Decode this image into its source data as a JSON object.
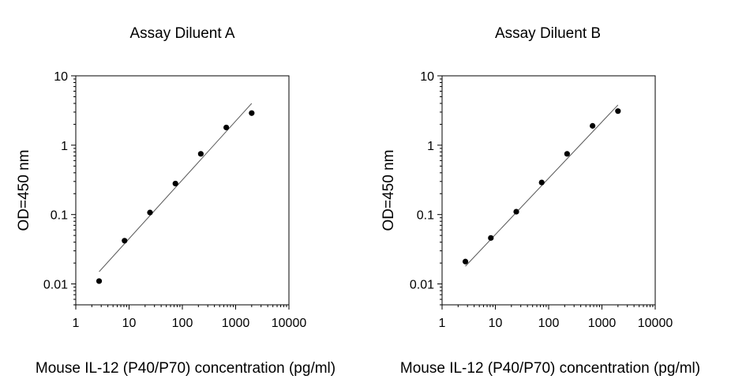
{
  "chart_data": [
    {
      "type": "scatter",
      "title": "Assay Diluent A",
      "xlabel": "Mouse IL-12 (P40/P70) concentration (pg/ml)",
      "ylabel": "OD=450 nm",
      "x_scale": "log",
      "y_scale": "log",
      "xlim": [
        1,
        10000
      ],
      "ylim": [
        0.005,
        10
      ],
      "x_ticks": [
        1,
        10,
        100,
        1000,
        10000
      ],
      "x_tick_labels": [
        "1",
        "10",
        "100",
        "1000",
        "10000"
      ],
      "y_ticks": [
        0.01,
        0.1,
        1,
        10
      ],
      "y_tick_labels": [
        "0.01",
        "0.1",
        "1",
        "10"
      ],
      "grid": false,
      "points": {
        "x": [
          2.74,
          8.23,
          24.7,
          74.1,
          222,
          667,
          2000
        ],
        "y": [
          0.011,
          0.042,
          0.107,
          0.28,
          0.75,
          1.8,
          2.9
        ]
      },
      "fit_line": {
        "x": [
          2.74,
          2000
        ],
        "y": [
          0.015,
          4.0
        ]
      }
    },
    {
      "type": "scatter",
      "title": "Assay Diluent B",
      "xlabel": "Mouse IL-12 (P40/P70) concentration (pg/ml)",
      "ylabel": "OD=450 nm",
      "x_scale": "log",
      "y_scale": "log",
      "xlim": [
        1,
        10000
      ],
      "ylim": [
        0.005,
        10
      ],
      "x_ticks": [
        1,
        10,
        100,
        1000,
        10000
      ],
      "x_tick_labels": [
        "1",
        "10",
        "100",
        "1000",
        "10000"
      ],
      "y_ticks": [
        0.01,
        0.1,
        1,
        10
      ],
      "y_tick_labels": [
        "0.01",
        "0.1",
        "1",
        "10"
      ],
      "grid": false,
      "points": {
        "x": [
          2.74,
          8.23,
          24.7,
          74.1,
          222,
          667,
          2000
        ],
        "y": [
          0.021,
          0.046,
          0.11,
          0.29,
          0.75,
          1.9,
          3.1
        ]
      },
      "fit_line": {
        "x": [
          2.74,
          2000
        ],
        "y": [
          0.018,
          3.8
        ]
      }
    }
  ]
}
